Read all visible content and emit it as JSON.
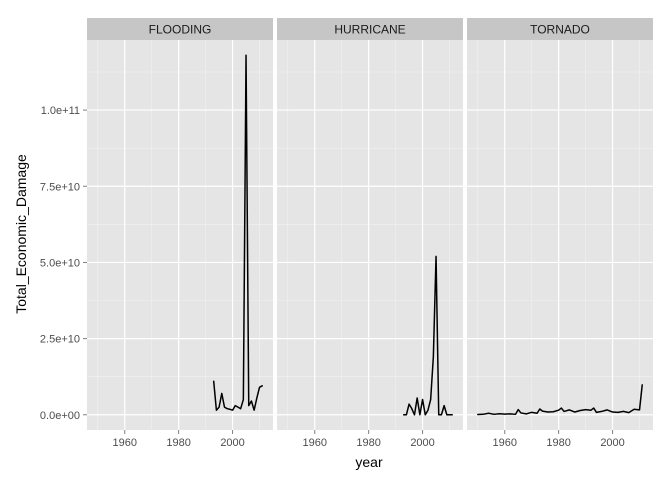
{
  "chart_data": {
    "type": "line",
    "xlabel": "year",
    "ylabel": "Total_Economic_Damage",
    "xlim": [
      1946,
      2015
    ],
    "ylim": [
      -5000000000,
      123000000000
    ],
    "x_ticks": [
      1960,
      1980,
      2000
    ],
    "x_tick_labels": [
      "1960",
      "1980",
      "2000"
    ],
    "y_ticks": [
      0,
      25000000000,
      50000000000,
      75000000000,
      100000000000
    ],
    "y_tick_labels": [
      "0.0e+00",
      "2.5e+10",
      "5.0e+10",
      "7.5e+10",
      "1.0e+11"
    ],
    "grid": true,
    "facets": [
      {
        "label": "FLOODING",
        "x": [
          1993,
          1994,
          1995,
          1996,
          1997,
          1998,
          1999,
          2000,
          2001,
          2002,
          2003,
          2004,
          2005,
          2006,
          2007,
          2008,
          2009,
          2010,
          2011
        ],
        "y": [
          11000000000,
          1500000000,
          2500000000,
          7000000000,
          2500000000,
          2000000000,
          1800000000,
          1500000000,
          3000000000,
          2500000000,
          2000000000,
          5000000000,
          118000000000,
          3000000000,
          4500000000,
          1500000000,
          5500000000,
          9000000000,
          9500000000
        ]
      },
      {
        "label": "HURRICANE",
        "x": [
          1993,
          1994,
          1995,
          1996,
          1997,
          1998,
          1999,
          2000,
          2001,
          2002,
          2003,
          2004,
          2005,
          2006,
          2007,
          2008,
          2009,
          2010,
          2011
        ],
        "y": [
          0,
          0,
          3500000000,
          2000000000,
          0,
          5500000000,
          0,
          5000000000,
          0,
          1500000000,
          5000000000,
          19000000000,
          52000000000,
          0,
          0,
          3000000000,
          0,
          0,
          0
        ]
      },
      {
        "label": "TORNADO",
        "x": [
          1950,
          1952,
          1954,
          1956,
          1958,
          1960,
          1962,
          1964,
          1965,
          1966,
          1968,
          1970,
          1972,
          1973,
          1974,
          1976,
          1978,
          1980,
          1981,
          1982,
          1984,
          1986,
          1988,
          1990,
          1992,
          1993,
          1994,
          1996,
          1998,
          2000,
          2002,
          2004,
          2006,
          2008,
          2010,
          2011
        ],
        "y": [
          100000000,
          150000000,
          500000000,
          150000000,
          350000000,
          200000000,
          300000000,
          150000000,
          1700000000,
          600000000,
          300000000,
          800000000,
          500000000,
          1900000000,
          1200000000,
          900000000,
          1000000000,
          1500000000,
          2200000000,
          1100000000,
          1600000000,
          900000000,
          1400000000,
          1700000000,
          1500000000,
          2200000000,
          800000000,
          1100000000,
          1600000000,
          900000000,
          800000000,
          1100000000,
          700000000,
          1800000000,
          1600000000,
          9800000000
        ]
      }
    ]
  }
}
